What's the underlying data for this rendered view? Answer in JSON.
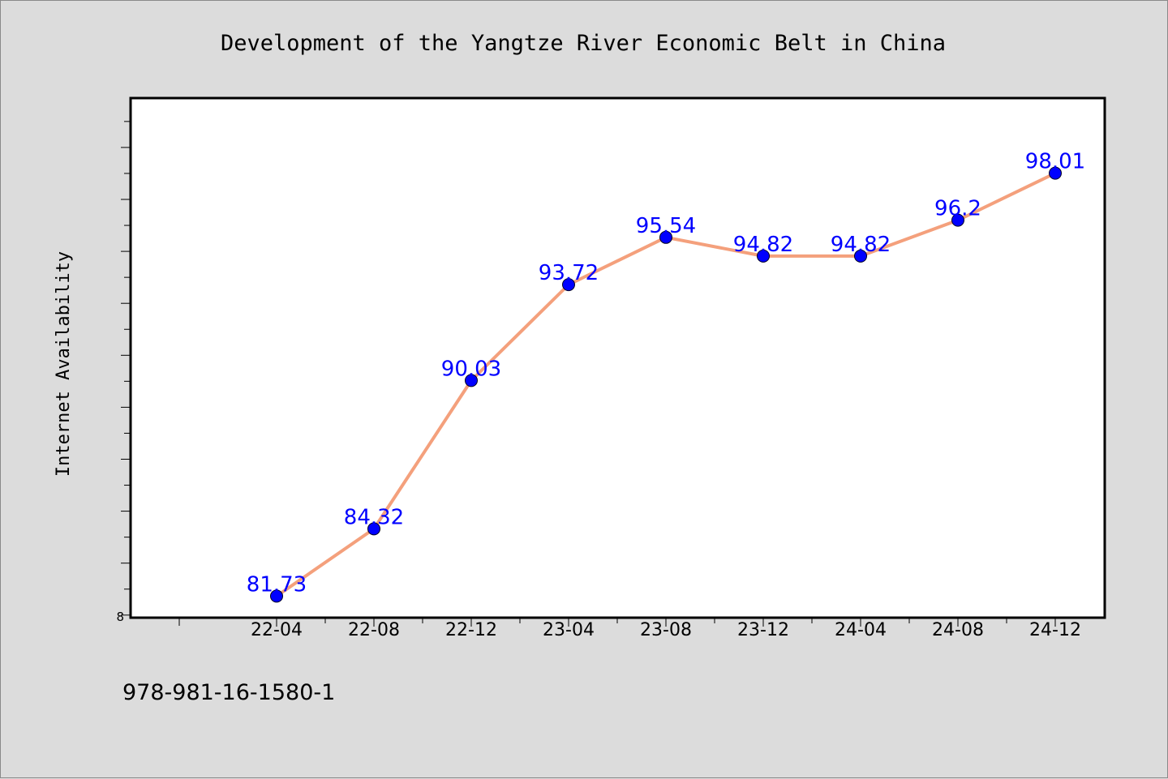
{
  "colors": {
    "background": "#dcdcdc",
    "plot_background": "#ffffff",
    "line": "#f4a07c",
    "marker": "#0000ff",
    "data_label": "#0000ff"
  },
  "footer": {
    "text": "978-981-16-1580-1"
  },
  "chart_data": {
    "type": "line",
    "title": "Development of the Yangtze River Economic Belt in China",
    "xlabel": "",
    "ylabel": "Internet Availability",
    "y_min_label": "8",
    "categories": [
      "22-04",
      "22-08",
      "22-12",
      "23-04",
      "23-08",
      "23-12",
      "24-04",
      "24-08",
      "24-12"
    ],
    "series": [
      {
        "values": [
          81.73,
          84.32,
          90.03,
          93.72,
          95.54,
          94.82,
          94.82,
          96.2,
          98.01
        ],
        "labels": [
          "81.73",
          "84.32",
          "90.03",
          "93.72",
          "95.54",
          "94.82",
          "94.82",
          "96.2",
          "98.01"
        ]
      }
    ],
    "ylim": [
      80.9,
      100.9
    ],
    "y_tick_step": 1,
    "grid": false,
    "legend": "none"
  }
}
